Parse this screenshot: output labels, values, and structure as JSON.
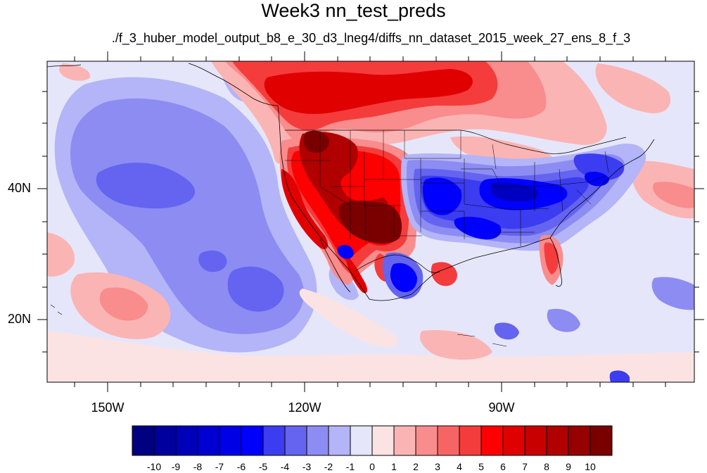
{
  "title": "Week3 nn_test_preds",
  "subtitle": "./f_3_huber_model_output_b8_e_30_d3_lneg4/diffs_nn_dataset_2015_week_27_ens_8_f_3",
  "lat_labels": [
    "40N",
    "20N"
  ],
  "lon_labels": [
    "150W",
    "120W",
    "90W"
  ],
  "colorbar": {
    "labels": [
      "-10",
      "-9",
      "-8",
      "-7",
      "-6",
      "-5",
      "-4",
      "-3",
      "-2",
      "-1",
      "0",
      "1",
      "2",
      "3",
      "4",
      "5",
      "6",
      "7",
      "8",
      "9",
      "10"
    ],
    "colors": [
      "#000080",
      "#00009f",
      "#0000b8",
      "#0000d0",
      "#0000e6",
      "#0000ff",
      "#3c3cf0",
      "#6464f0",
      "#8c8cf3",
      "#b4b4f8",
      "#e6e6fa",
      "#fbe3e3",
      "#fbb4b4",
      "#f98c8c",
      "#f76464",
      "#f43c3c",
      "#ff0000",
      "#e00000",
      "#c80000",
      "#b00000",
      "#960000",
      "#7a0000"
    ]
  },
  "palette": {
    "background": "#e6e6fa",
    "light_pink": "#fbe3e3",
    "pink": "#fbb4b4",
    "salmon": "#f98c8c",
    "red": "#f43c3c",
    "bright_red": "#ff0000",
    "dark_red": "#b00000",
    "maroon": "#7a0000",
    "light_blue": "#b4b4f8",
    "periwinkle": "#8c8cf3",
    "medium_blue": "#6464f0",
    "blue": "#3c3cf0",
    "pure_blue": "#0000ff",
    "deep_blue": "#0000c0",
    "map_lines": "#000000"
  }
}
